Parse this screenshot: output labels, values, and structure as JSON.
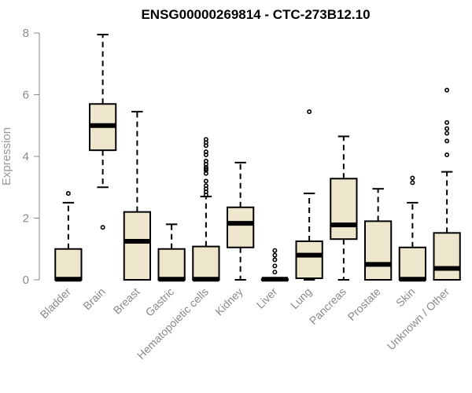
{
  "chart_data": {
    "type": "boxplot",
    "title": "ENSG00000269814 - CTC-273B12.10",
    "ylabel": "Expression",
    "xlabel": "",
    "ylim": [
      0,
      8
    ],
    "yticks": [
      0,
      2,
      4,
      6,
      8
    ],
    "grid": false,
    "colors": {
      "box_fill": "#EDE6CC",
      "stroke": "#000000",
      "axis": "#8a8a8a"
    },
    "categories": [
      "Bladder",
      "Brain",
      "Breast",
      "Gastric",
      "Hematopoietic cells",
      "Kidney",
      "Liver",
      "Lung",
      "Pancreas",
      "Prostate",
      "Skin",
      "Unknown / Other"
    ],
    "boxes": [
      {
        "label": "Bladder",
        "min": 0,
        "q1": 0,
        "median": 0.02,
        "q3": 1.0,
        "max": 2.5,
        "outliers": [
          2.8
        ]
      },
      {
        "label": "Brain",
        "min": 3.0,
        "q1": 4.2,
        "median": 5.0,
        "q3": 5.7,
        "max": 7.95,
        "outliers": [
          1.7
        ]
      },
      {
        "label": "Breast",
        "min": 0,
        "q1": 0,
        "median": 1.25,
        "q3": 2.2,
        "max": 5.45,
        "outliers": []
      },
      {
        "label": "Gastric",
        "min": 0,
        "q1": 0,
        "median": 0.02,
        "q3": 1.0,
        "max": 1.8,
        "outliers": []
      },
      {
        "label": "Hematopoietic cells",
        "min": 0,
        "q1": 0,
        "median": 0.02,
        "q3": 1.08,
        "max": 2.7,
        "outliers": [
          2.75,
          2.85,
          2.95,
          3.05,
          3.2,
          3.45,
          3.55,
          3.6,
          3.65,
          3.75,
          3.85,
          4.05,
          4.15,
          4.35,
          4.45,
          4.55
        ]
      },
      {
        "label": "Kidney",
        "min": 0,
        "q1": 1.05,
        "median": 1.83,
        "q3": 2.35,
        "max": 3.8,
        "outliers": []
      },
      {
        "label": "Liver",
        "min": 0,
        "q1": 0,
        "median": 0.02,
        "q3": 0.02,
        "max": 0.02,
        "outliers": [
          0.25,
          0.45,
          0.65,
          0.8,
          0.95
        ]
      },
      {
        "label": "Lung",
        "min": 0,
        "q1": 0.05,
        "median": 0.8,
        "q3": 1.25,
        "max": 2.8,
        "outliers": [
          5.45
        ]
      },
      {
        "label": "Pancreas",
        "min": 0,
        "q1": 1.32,
        "median": 1.78,
        "q3": 3.28,
        "max": 4.65,
        "outliers": []
      },
      {
        "label": "Prostate",
        "min": 0,
        "q1": 0,
        "median": 0.5,
        "q3": 1.9,
        "max": 2.95,
        "outliers": []
      },
      {
        "label": "Skin",
        "min": 0,
        "q1": 0,
        "median": 0.02,
        "q3": 1.05,
        "max": 2.5,
        "outliers": [
          3.15,
          3.3
        ]
      },
      {
        "label": "Unknown / Other",
        "min": 0,
        "q1": 0,
        "median": 0.37,
        "q3": 1.52,
        "max": 3.5,
        "outliers": [
          4.05,
          4.5,
          4.75,
          4.9,
          5.1,
          6.15
        ]
      }
    ]
  }
}
